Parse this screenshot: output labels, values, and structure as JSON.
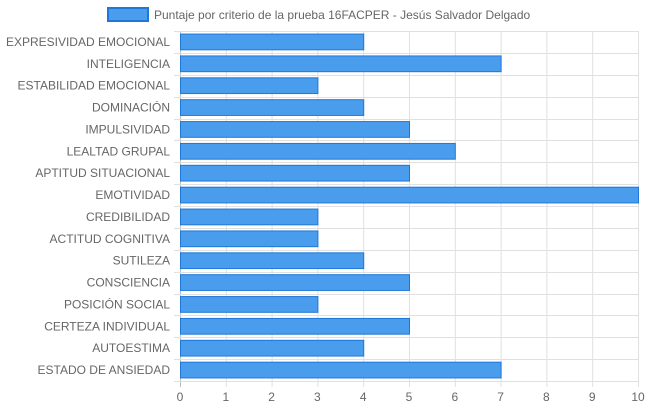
{
  "chart_data": {
    "type": "bar",
    "orientation": "horizontal",
    "categories": [
      "EXPRESIVIDAD EMOCIONAL",
      "INTELIGENCIA",
      "ESTABILIDAD EMOCIONAL",
      "DOMINACIÓN",
      "IMPULSIVIDAD",
      "LEALTAD GRUPAL",
      "APTITUD SITUACIONAL",
      "EMOTIVIDAD",
      "CREDIBILIDAD",
      "ACTITUD COGNITIVA",
      "SUTILEZA",
      "CONSCIENCIA",
      "POSICIÓN SOCIAL",
      "CERTEZA INDIVIDUAL",
      "AUTOESTIMA",
      "ESTADO DE ANSIEDAD"
    ],
    "series": [
      {
        "name": "Puntaje por criterio de la prueba 16FACPER - Jesús Salvador Delgado",
        "values": [
          4,
          7,
          3,
          4,
          5,
          6,
          5,
          10,
          3,
          3,
          4,
          5,
          3,
          5,
          4,
          7
        ],
        "fill_color": "#4a9ced",
        "border_color": "#1f78d8"
      }
    ],
    "xlim": [
      0,
      10
    ],
    "x_ticks": [
      "0",
      "1",
      "2",
      "3",
      "4",
      "5",
      "6",
      "7",
      "8",
      "9",
      "10"
    ],
    "grid": true,
    "legend_position": "top"
  }
}
